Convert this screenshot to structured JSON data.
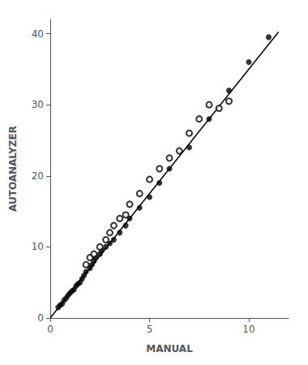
{
  "chart_data": {
    "type": "scatter",
    "xlabel": "MANUAL",
    "ylabel": "AUTOANALYZER",
    "xlim": [
      0,
      12
    ],
    "ylim": [
      0,
      42
    ],
    "xticks": [
      0,
      5,
      10
    ],
    "yticks": [
      0,
      10,
      20,
      30,
      40
    ],
    "grid": false,
    "series": [
      {
        "type": "scatter",
        "marker": "filled",
        "color": "#000000",
        "x": [
          0.4,
          0.5,
          0.6,
          0.7,
          0.8,
          0.9,
          1.0,
          1.1,
          1.2,
          1.3,
          1.4,
          1.5,
          1.6,
          1.7,
          1.8,
          2.0,
          2.1,
          2.2,
          2.3,
          2.5,
          2.6,
          2.8,
          3.0,
          3.2,
          3.5,
          3.8,
          4.0,
          4.5,
          5.0,
          5.5,
          6.0,
          7.0,
          8.0,
          9.0,
          10.0,
          11.0
        ],
        "values": [
          1.5,
          1.8,
          2.0,
          2.5,
          2.8,
          3.2,
          3.5,
          3.8,
          4.0,
          4.5,
          4.8,
          5.0,
          5.5,
          6.0,
          6.5,
          7.0,
          7.5,
          8.0,
          8.5,
          9.0,
          9.5,
          10.0,
          10.5,
          11.0,
          12.0,
          13.0,
          14.0,
          15.5,
          17.0,
          19.0,
          21.0,
          24.0,
          28.0,
          32.0,
          36.0,
          39.5
        ]
      },
      {
        "type": "scatter",
        "marker": "open",
        "color": "#000000",
        "x": [
          1.8,
          2.0,
          2.2,
          2.5,
          2.8,
          3.0,
          3.2,
          3.5,
          3.8,
          4.0,
          4.5,
          5.0,
          5.5,
          6.0,
          6.5,
          7.0,
          7.5,
          8.0,
          8.5,
          9.0
        ],
        "values": [
          7.5,
          8.5,
          9.0,
          10.0,
          11.0,
          12.0,
          13.0,
          14.0,
          14.5,
          16.0,
          17.5,
          19.5,
          21.0,
          22.5,
          23.5,
          26.0,
          28.0,
          30.0,
          29.5,
          30.5
        ]
      },
      {
        "type": "line",
        "line_style": "solid",
        "color": "#000000",
        "x": [
          0,
          11.5
        ],
        "values": [
          0,
          40.25
        ]
      }
    ]
  }
}
